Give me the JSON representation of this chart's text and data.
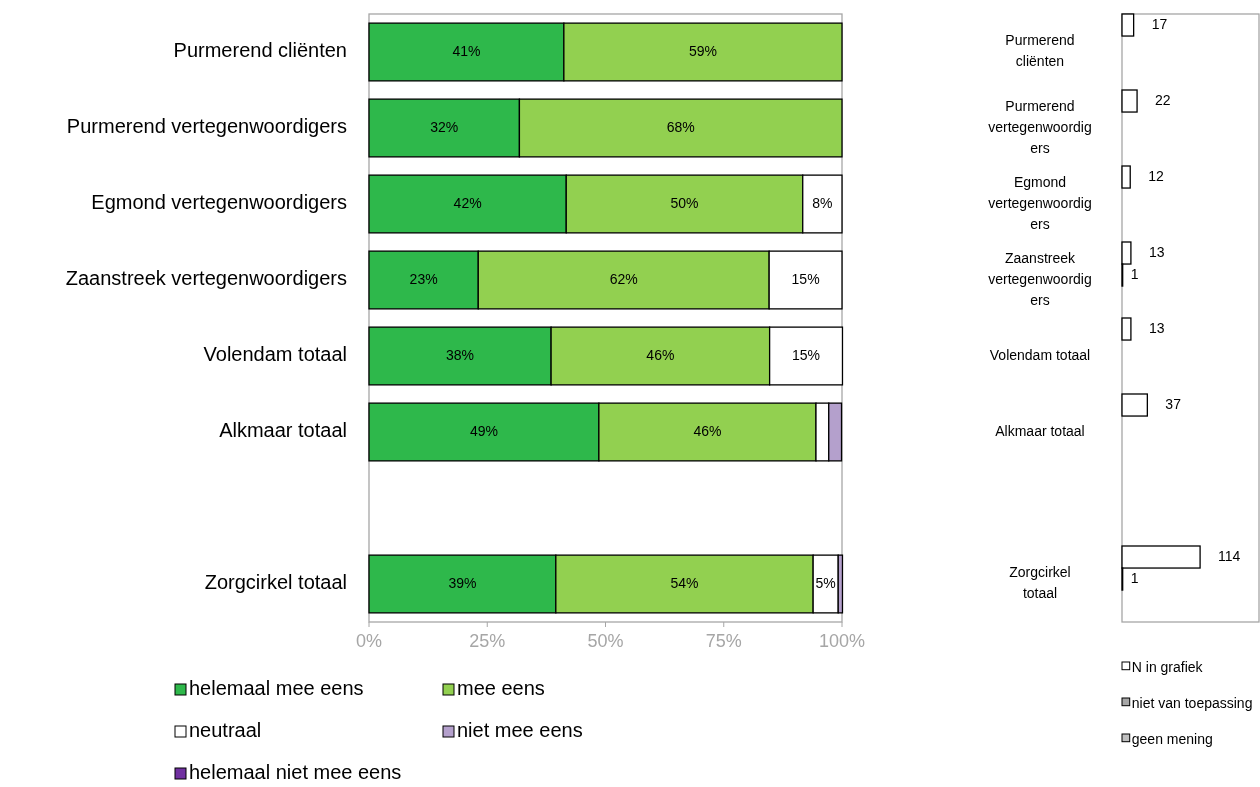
{
  "chart_data": [
    {
      "type": "bar",
      "orientation": "horizontal",
      "stacked": true,
      "categories": [
        "Purmerend cliënten",
        "Purmerend vertegenwoordigers",
        "Egmond vertegenwoordigers",
        "Zaanstreek vertegenwoordigers",
        "Volendam totaal",
        "Alkmaar totaal",
        null,
        "Zorgcirkel totaal"
      ],
      "series": [
        {
          "name": "helemaal mee eens",
          "color": "#2eb84b",
          "values": [
            41.2,
            31.8,
            41.7,
            23.1,
            38.5,
            48.6,
            null,
            39.5
          ],
          "value_labels": [
            "41%",
            "32%",
            "42%",
            "23%",
            "38%",
            "49%",
            null,
            "39%"
          ]
        },
        {
          "name": "mee eens",
          "color": "#92d050",
          "values": [
            58.8,
            68.2,
            50,
            61.5,
            46.2,
            45.9,
            null,
            54.4
          ],
          "value_labels": [
            "59%",
            "68%",
            "50%",
            "62%",
            "46%",
            "46%",
            null,
            "54%"
          ]
        },
        {
          "name": "neutraal",
          "color": "#ffffff",
          "values": [
            null,
            null,
            8.3,
            15.4,
            15.4,
            2.7,
            null,
            5.3
          ],
          "value_labels": [
            null,
            null,
            "8%",
            "15%",
            "15%",
            null,
            null,
            "5%"
          ]
        },
        {
          "name": "niet mee eens",
          "color": "#b4a0cc",
          "values": [
            null,
            null,
            null,
            null,
            null,
            2.7,
            null,
            0.9
          ]
        },
        {
          "name": "helemaal niet mee eens",
          "color": "#7030a0",
          "values": [
            null,
            null,
            null,
            null,
            null,
            null,
            null,
            null
          ]
        }
      ],
      "xlim": [
        0,
        100
      ],
      "xticks": [
        {
          "value": 0,
          "label": "0%"
        },
        {
          "value": 25,
          "label": "25%"
        },
        {
          "value": 50,
          "label": "50%"
        },
        {
          "value": 75,
          "label": "75%"
        },
        {
          "value": 100,
          "label": "100%"
        }
      ],
      "grid": false,
      "legend": "bottom"
    },
    {
      "type": "bar",
      "orientation": "horizontal",
      "categories": [
        "Purmerend cliënten",
        "Purmerend vertegenwoordigers",
        "Egmond vertegenwoordigers",
        "Zaanstreek vertegenwoordigers",
        "Volendam totaal",
        "Alkmaar totaal",
        null,
        "Zorgcirkel totaal"
      ],
      "series": [
        {
          "name": "N in grafiek",
          "color": "#ffffff",
          "values": [
            17,
            22,
            12,
            13,
            13,
            37,
            null,
            114
          ]
        },
        {
          "name": "niet van toepassing",
          "color": "#a6a6a6",
          "values": [
            null,
            null,
            null,
            1,
            null,
            null,
            null,
            1
          ]
        },
        {
          "name": "geen mening",
          "color": "#bfbfbf",
          "values": [
            null,
            null,
            null,
            null,
            null,
            null,
            null,
            null
          ]
        }
      ],
      "xlim": [
        0,
        200
      ],
      "data_labels": true,
      "tick_labels": "y",
      "grid": false,
      "legend": "bottom"
    }
  ]
}
